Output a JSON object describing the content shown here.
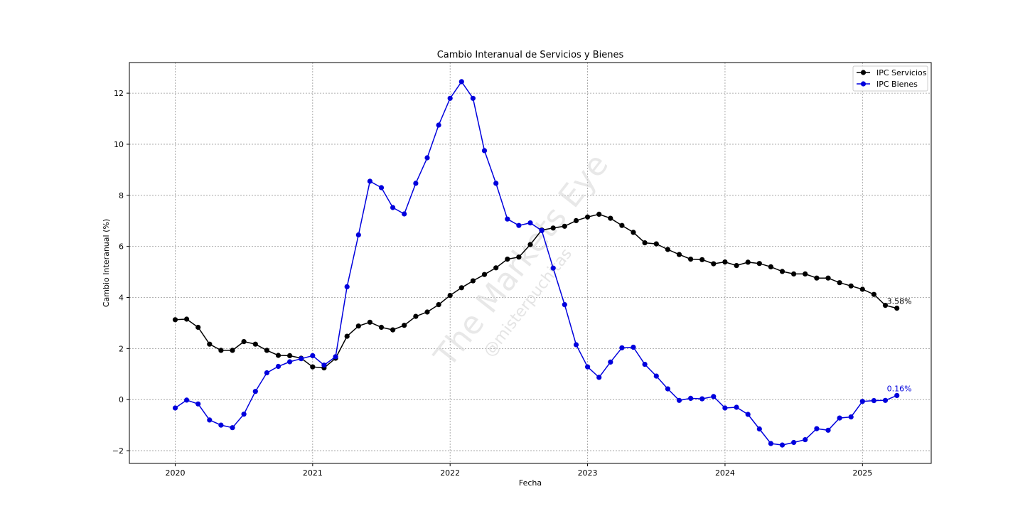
{
  "chart_data": {
    "type": "line",
    "title": "Cambio Interanual de Servicios y Bienes",
    "xlabel": "Fecha",
    "ylabel": "Cambio Interanual (%)",
    "xlim": [
      "2019-09",
      "2025-07"
    ],
    "ylim": [
      -2.5,
      13.2
    ],
    "xticks": [
      "2020",
      "2021",
      "2022",
      "2023",
      "2024",
      "2025"
    ],
    "yticks": [
      -2,
      0,
      2,
      4,
      6,
      8,
      10,
      12
    ],
    "ytick_labels": [
      "−2",
      "0",
      "2",
      "4",
      "6",
      "8",
      "10",
      "12"
    ],
    "grid": true,
    "legend_position": "top-right",
    "x": [
      "2020-01",
      "2020-02",
      "2020-03",
      "2020-04",
      "2020-05",
      "2020-06",
      "2020-07",
      "2020-08",
      "2020-09",
      "2020-10",
      "2020-11",
      "2020-12",
      "2021-01",
      "2021-02",
      "2021-03",
      "2021-04",
      "2021-05",
      "2021-06",
      "2021-07",
      "2021-08",
      "2021-09",
      "2021-10",
      "2021-11",
      "2021-12",
      "2022-01",
      "2022-02",
      "2022-03",
      "2022-04",
      "2022-05",
      "2022-06",
      "2022-07",
      "2022-08",
      "2022-09",
      "2022-10",
      "2022-11",
      "2022-12",
      "2023-01",
      "2023-02",
      "2023-03",
      "2023-04",
      "2023-05",
      "2023-06",
      "2023-07",
      "2023-08",
      "2023-09",
      "2023-10",
      "2023-11",
      "2023-12",
      "2024-01",
      "2024-02",
      "2024-03",
      "2024-04",
      "2024-05",
      "2024-06",
      "2024-07",
      "2024-08",
      "2024-09",
      "2024-10",
      "2024-11",
      "2024-12",
      "2025-01",
      "2025-02",
      "2025-03",
      "2025-04"
    ],
    "series": [
      {
        "name": "IPC Servicios",
        "color": "#000000",
        "values": [
          3.13,
          3.15,
          2.83,
          2.17,
          1.93,
          1.93,
          2.27,
          2.17,
          1.93,
          1.73,
          1.72,
          1.62,
          1.28,
          1.24,
          1.62,
          2.48,
          2.88,
          3.03,
          2.83,
          2.73,
          2.91,
          3.26,
          3.43,
          3.72,
          4.08,
          4.38,
          4.65,
          4.9,
          5.16,
          5.5,
          5.58,
          6.07,
          6.64,
          6.72,
          6.79,
          7.01,
          7.15,
          7.26,
          7.1,
          6.82,
          6.55,
          6.14,
          6.1,
          5.88,
          5.68,
          5.5,
          5.48,
          5.32,
          5.39,
          5.25,
          5.38,
          5.33,
          5.2,
          5.02,
          4.92,
          4.92,
          4.76,
          4.76,
          4.58,
          4.45,
          4.32,
          4.12,
          3.69,
          3.58
        ]
      },
      {
        "name": "IPC Bienes",
        "color": "#0000dd",
        "values": [
          -0.33,
          -0.02,
          -0.17,
          -0.8,
          -1.0,
          -1.1,
          -0.57,
          0.32,
          1.05,
          1.3,
          1.48,
          1.6,
          1.72,
          1.35,
          1.68,
          4.42,
          6.45,
          8.55,
          8.3,
          7.52,
          7.27,
          8.47,
          9.47,
          10.75,
          11.8,
          12.45,
          11.8,
          9.75,
          8.47,
          7.07,
          6.82,
          6.92,
          6.62,
          5.15,
          3.72,
          2.15,
          1.28,
          0.87,
          1.47,
          2.03,
          2.05,
          1.38,
          0.92,
          0.42,
          -0.03,
          0.05,
          0.03,
          0.12,
          -0.33,
          -0.3,
          -0.58,
          -1.15,
          -1.72,
          -1.78,
          -1.68,
          -1.57,
          -1.14,
          -1.2,
          -0.72,
          -0.68,
          -0.07,
          -0.04,
          -0.03,
          0.16
        ]
      }
    ],
    "annotations": [
      {
        "text": "3.58%",
        "series": "IPC Servicios",
        "color": "#000000"
      },
      {
        "text": "0.16%",
        "series": "IPC Bienes",
        "color": "#0000dd"
      }
    ]
  },
  "watermark": {
    "main": "The Markets Eye",
    "sub": "@misterpuchitas"
  }
}
